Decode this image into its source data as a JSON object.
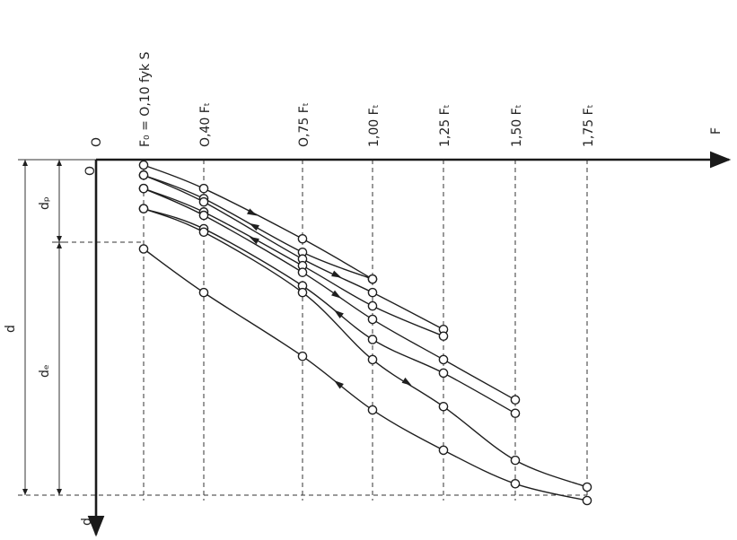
{
  "chart_data": {
    "type": "line",
    "title": "",
    "x_axis": {
      "label": "F",
      "origin_label": "O"
    },
    "y_axis": {
      "label": "d",
      "origin_label": "O"
    },
    "load_levels": [
      {
        "label": "F₀ = O,10 fyk S",
        "value": 0.1
      },
      {
        "label": "O,40 Fₜ",
        "value": 0.4
      },
      {
        "label": "O,75 Fₜ",
        "value": 0.75
      },
      {
        "label": "1,00 Fₜ",
        "value": 1.0
      },
      {
        "label": "1,25 Fₜ",
        "value": 1.25
      },
      {
        "label": "1,50 Fₜ",
        "value": 1.5
      },
      {
        "label": "1,75 Fₜ",
        "value": 1.75
      }
    ],
    "dimension_labels": {
      "total": "d",
      "plastic": "dₚ",
      "elastic": "dₑ"
    },
    "settlement_scale": {
      "plastic_boundary": 0.25,
      "max": 1.0
    },
    "cycles": [
      {
        "peak": 1.0,
        "loading": [
          [
            0.1,
            0.0
          ],
          [
            0.4,
            0.07
          ],
          [
            0.75,
            0.22
          ],
          [
            1.0,
            0.34
          ]
        ],
        "unloading": [
          [
            1.0,
            0.34
          ],
          [
            0.75,
            0.26
          ],
          [
            0.4,
            0.1
          ],
          [
            0.1,
            0.03
          ]
        ]
      },
      {
        "peak": 1.25,
        "loading": [
          [
            0.1,
            0.03
          ],
          [
            0.4,
            0.11
          ],
          [
            0.75,
            0.28
          ],
          [
            1.0,
            0.38
          ],
          [
            1.25,
            0.49
          ]
        ],
        "unloading": [
          [
            1.25,
            0.51
          ],
          [
            1.0,
            0.42
          ],
          [
            0.75,
            0.3
          ],
          [
            0.4,
            0.14
          ],
          [
            0.1,
            0.07
          ]
        ]
      },
      {
        "peak": 1.5,
        "loading": [
          [
            0.1,
            0.07
          ],
          [
            0.4,
            0.15
          ],
          [
            0.75,
            0.32
          ],
          [
            1.0,
            0.46
          ],
          [
            1.25,
            0.58
          ],
          [
            1.5,
            0.7
          ]
        ],
        "unloading": [
          [
            1.5,
            0.74
          ],
          [
            1.25,
            0.62
          ],
          [
            1.0,
            0.52
          ],
          [
            0.75,
            0.36
          ],
          [
            0.4,
            0.19
          ],
          [
            0.1,
            0.13
          ]
        ]
      },
      {
        "peak": 1.75,
        "loading": [
          [
            0.1,
            0.13
          ],
          [
            0.4,
            0.2
          ],
          [
            0.75,
            0.38
          ],
          [
            1.0,
            0.58
          ],
          [
            1.25,
            0.72
          ],
          [
            1.5,
            0.88
          ],
          [
            1.75,
            0.96
          ]
        ],
        "unloading": [
          [
            1.75,
            1.0
          ],
          [
            1.5,
            0.95
          ],
          [
            1.25,
            0.85
          ],
          [
            1.0,
            0.73
          ],
          [
            0.75,
            0.57
          ],
          [
            0.4,
            0.38
          ],
          [
            0.1,
            0.25
          ]
        ]
      }
    ],
    "grid": "dashed at load levels",
    "legend": "none"
  }
}
